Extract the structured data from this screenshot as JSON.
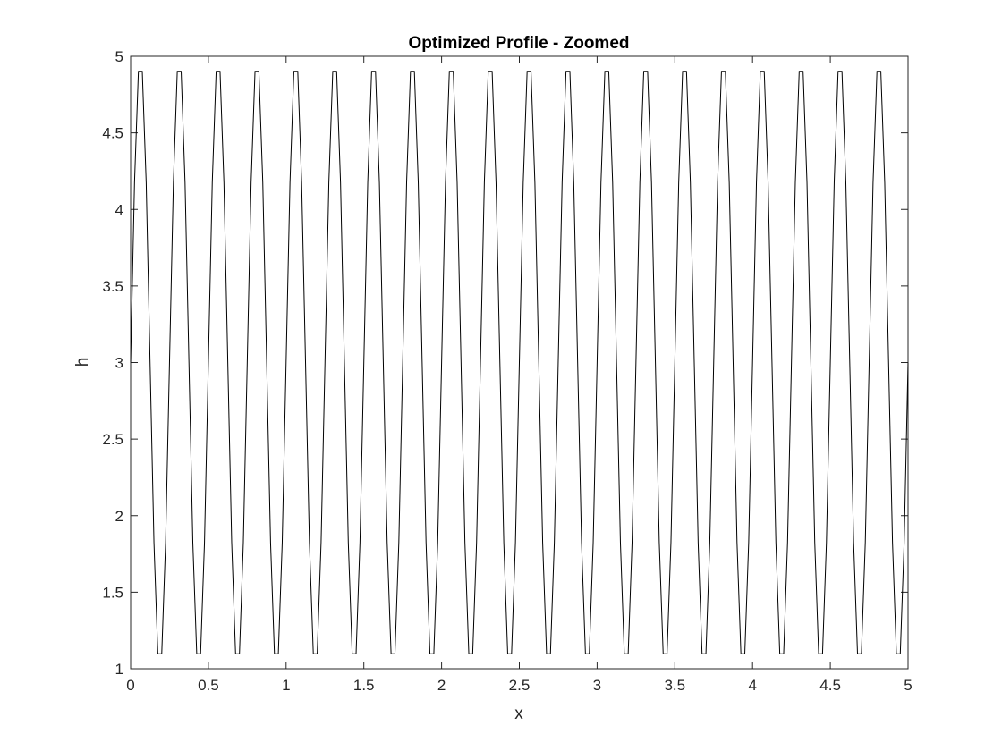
{
  "chart_data": {
    "type": "line",
    "title": "Optimized Profile - Zoomed",
    "xlabel": "x",
    "ylabel": "h",
    "xlim": [
      0,
      5
    ],
    "ylim": [
      1,
      5
    ],
    "xticks": [
      0,
      0.5,
      1,
      1.5,
      2,
      2.5,
      3,
      3.5,
      4,
      4.5,
      5
    ],
    "yticks": [
      1,
      1.5,
      2,
      2.5,
      3,
      3.5,
      4,
      4.5,
      5
    ],
    "xtick_labels": [
      "0",
      "0.5",
      "1",
      "1.5",
      "2",
      "2.5",
      "3",
      "3.5",
      "4",
      "4.5",
      "5"
    ],
    "ytick_labels": [
      "1",
      "1.5",
      "2",
      "2.5",
      "3",
      "3.5",
      "4",
      "4.5",
      "5"
    ],
    "grid": false,
    "box": true,
    "line_color": "#000000",
    "series": [
      {
        "function": "h = 3 + 2*sin(2*pi*x/0.25)",
        "mean": 3,
        "amplitude": 2,
        "period": 0.25,
        "x_sample_step": 0.025,
        "x_range": [
          0,
          5
        ]
      }
    ]
  }
}
